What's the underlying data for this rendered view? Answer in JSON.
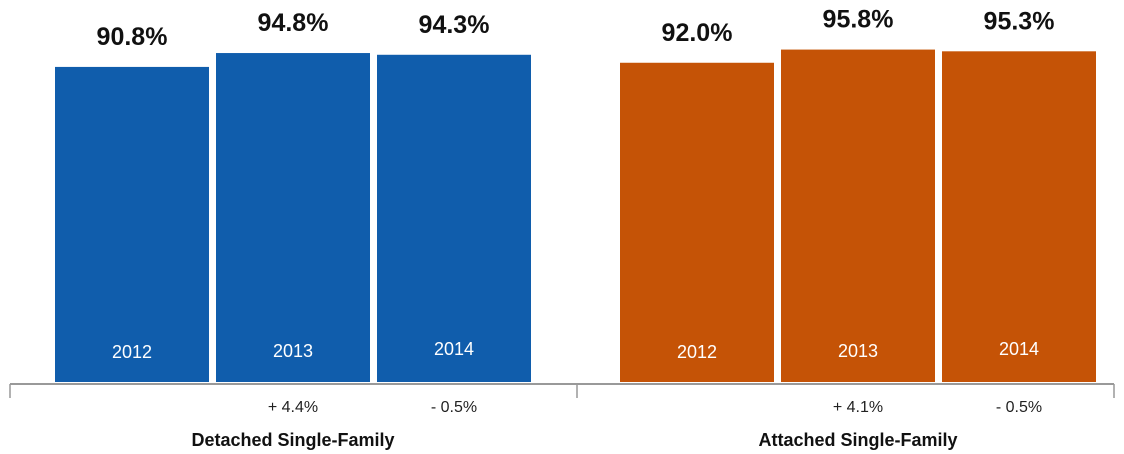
{
  "chart_data": {
    "type": "bar",
    "groups": [
      {
        "name": "Detached Single-Family",
        "color": "#105DAC",
        "categories": [
          "2012",
          "2013",
          "2014"
        ],
        "values": [
          90.8,
          94.8,
          94.3
        ],
        "value_labels": [
          "90.8%",
          "94.8%",
          "94.3%"
        ],
        "changes": [
          "",
          "+ 4.4%",
          "- 0.5%"
        ]
      },
      {
        "name": "Attached Single-Family",
        "color": "#C55306",
        "categories": [
          "2012",
          "2013",
          "2014"
        ],
        "values": [
          92.0,
          95.8,
          95.3
        ],
        "value_labels": [
          "92.0%",
          "95.8%",
          "95.3%"
        ],
        "changes": [
          "",
          "+ 4.1%",
          "- 0.5%"
        ]
      }
    ],
    "axis_color": "#999999"
  }
}
